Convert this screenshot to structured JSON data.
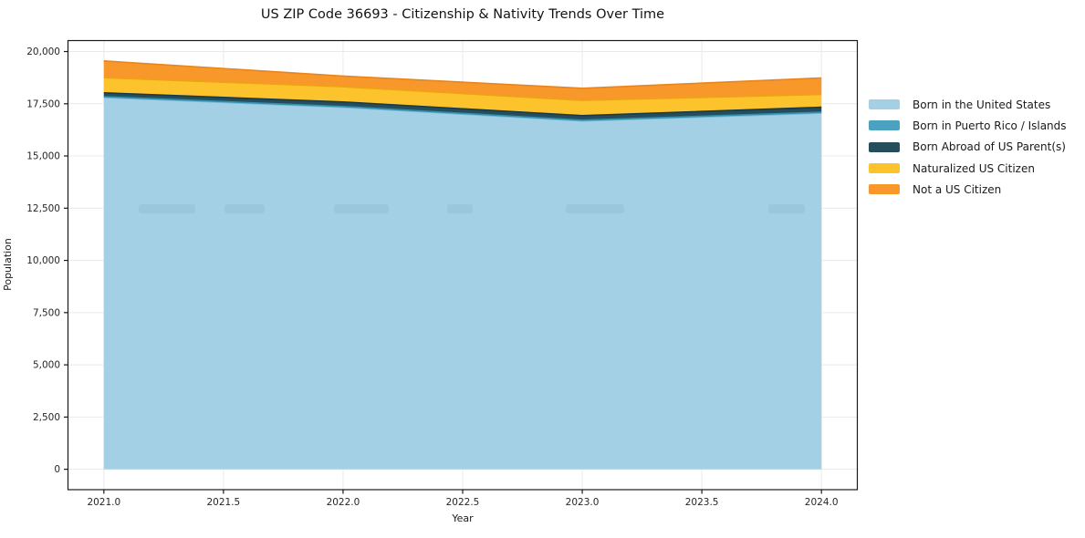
{
  "chart_data": {
    "type": "area",
    "stacked": true,
    "title": "US ZIP Code 36693 - Citizenship & Nativity Trends Over Time",
    "xlabel": "Year",
    "ylabel": "Population",
    "x": [
      2021,
      2022,
      2023,
      2024
    ],
    "series": [
      {
        "name": "Born in the United States",
        "color": "#a3d0e4",
        "edge": "#7ab6d4",
        "values": [
          17800,
          17330,
          16675,
          17050
        ]
      },
      {
        "name": "Born in Puerto Rico / Islands",
        "color": "#4aa2c0",
        "edge": "#2f8fae",
        "values": [
          40,
          40,
          40,
          45
        ]
      },
      {
        "name": "Born Abroad of US Parent(s)",
        "color": "#264d5c",
        "edge": "#173b48",
        "values": [
          185,
          215,
          215,
          240
        ]
      },
      {
        "name": "Naturalized US Citizen",
        "color": "#fcc32d",
        "edge": "#eea312",
        "values": [
          725,
          730,
          730,
          610
        ]
      },
      {
        "name": "Not a US Citizen",
        "color": "#f8982b",
        "edge": "#e8851c",
        "values": [
          800,
          510,
          580,
          790
        ]
      }
    ],
    "xticks": [
      2021.0,
      2021.5,
      2022.0,
      2022.5,
      2023.0,
      2023.5,
      2024.0
    ],
    "xtick_labels": [
      "2021.0",
      "2021.5",
      "2022.0",
      "2022.5",
      "2023.0",
      "2023.5",
      "2024.0"
    ],
    "yticks": [
      0,
      2500,
      5000,
      7500,
      10000,
      12500,
      15000,
      17500,
      20000
    ],
    "ytick_labels": [
      "0",
      "2,500",
      "5,000",
      "7,500",
      "10,000",
      "12,500",
      "15,000",
      "17,500",
      "20,000"
    ],
    "xlim": [
      2020.85,
      2024.15
    ],
    "ylim": [
      -977,
      20525
    ],
    "grid": true,
    "legend_position": "right",
    "colors": {
      "spine": "#1a1a1a",
      "grid": "#e9e9e9",
      "tick_text": "#262626",
      "background": "#ffffff"
    }
  }
}
